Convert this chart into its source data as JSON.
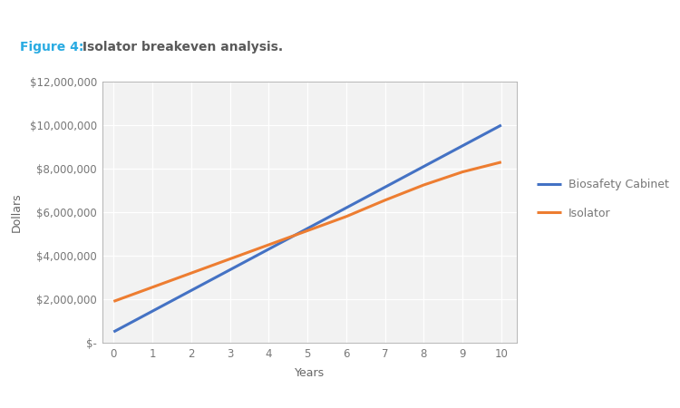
{
  "title_label": "Figure 4:",
  "title_text": " Isolator breakeven analysis.",
  "title_color": "#29abe2",
  "title_text_color": "#595959",
  "xlabel": "Years",
  "ylabel": "Dollars",
  "x_values": [
    0,
    1,
    2,
    3,
    4,
    5,
    6,
    7,
    8,
    9,
    10
  ],
  "biosafety_y": [
    500000,
    1450000,
    2400000,
    3350000,
    4300000,
    5250000,
    6200000,
    7150000,
    8100000,
    9050000,
    10000000
  ],
  "isolator_y": [
    1900000,
    2550000,
    3200000,
    3850000,
    4500000,
    5150000,
    5800000,
    6550000,
    7250000,
    7850000,
    8300000
  ],
  "biosafety_color": "#4472c4",
  "isolator_color": "#ed7d31",
  "line_width": 2.2,
  "ylim": [
    0,
    12000000
  ],
  "xlim": [
    -0.3,
    10.4
  ],
  "yticks": [
    0,
    2000000,
    4000000,
    6000000,
    8000000,
    10000000,
    12000000
  ],
  "xticks": [
    0,
    1,
    2,
    3,
    4,
    5,
    6,
    7,
    8,
    9,
    10
  ],
  "background_color": "#ffffff",
  "plot_bg_color": "#f2f2f2",
  "grid_color": "#ffffff",
  "legend_biosafety": "Biosafety Cabinet",
  "legend_isolator": "Isolator",
  "title_fontsize": 10,
  "axis_label_fontsize": 9,
  "tick_fontsize": 8.5
}
